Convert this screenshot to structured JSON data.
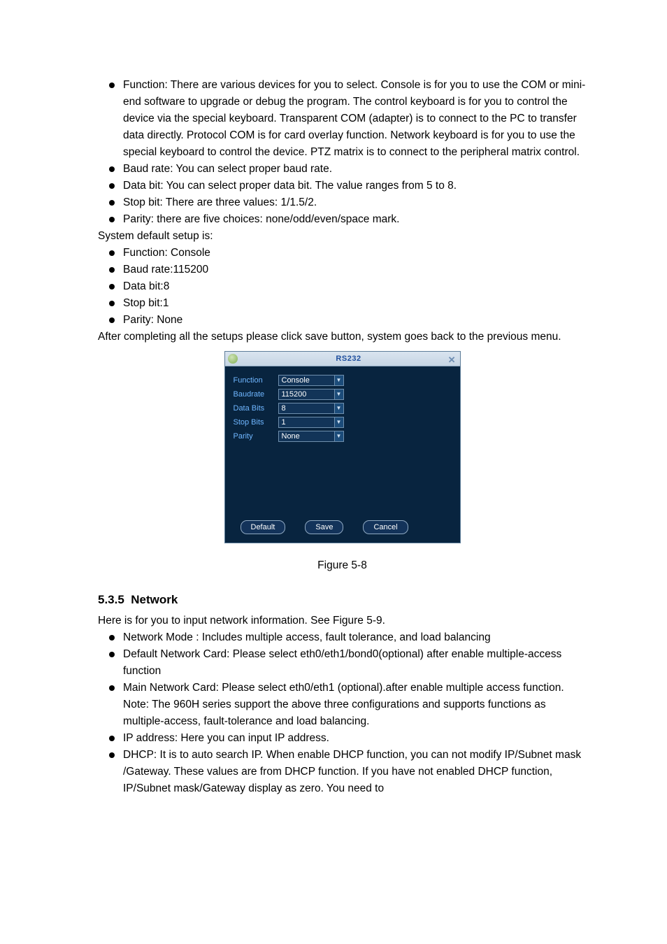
{
  "list1": {
    "function": "Function: There are various devices for you to select. Console is for you to use the COM or mini-end software to upgrade or debug the program. The control keyboard is for you to control the device via the special keyboard. Transparent COM (adapter) is to connect to the PC to transfer data directly. Protocol COM is for card overlay function. Network keyboard is for you to use the special keyboard to control the device. PTZ matrix is to connect to the peripheral matrix control.",
    "baud": "Baud rate: You can select proper baud rate.",
    "databit": "Data bit: You can select proper data bit. The value ranges from 5 to 8.",
    "stopbit": "Stop bit: There are three values: 1/1.5/2.",
    "parity": "Parity: there are five choices: none/odd/even/space mark."
  },
  "defaults_intro": "System default setup is:",
  "defaults": {
    "function": "Function: Console",
    "baud": "Baud rate:115200",
    "databit": "Data bit:8",
    "stopbit": "Stop bit:1",
    "parity": "Parity: None"
  },
  "after": "After completing all the setups please click save button, system goes back to the previous menu.",
  "dialog": {
    "title": "RS232",
    "close": "✕",
    "rows": {
      "function": {
        "label": "Function",
        "value": "Console"
      },
      "baud": {
        "label": "Baudrate",
        "value": "115200"
      },
      "databits": {
        "label": "Data Bits",
        "value": "8"
      },
      "stopbits": {
        "label": "Stop Bits",
        "value": "1"
      },
      "parity": {
        "label": "Parity",
        "value": "None"
      }
    },
    "buttons": {
      "default": "Default",
      "save": "Save",
      "cancel": "Cancel"
    }
  },
  "figcap": "Figure 5-8",
  "section": {
    "num": "5.3.5",
    "title": "Network",
    "intro": "Here is for you to input network information. See Figure 5-9.",
    "items": {
      "netmode": "Network Mode : Includes multiple access, fault tolerance, and load balancing",
      "defcard": "Default Network Card: Please select eth0/eth1/bond0(optional) after enable multiple-access function",
      "maincard": "Main Network Card: Please select eth0/eth1 (optional).after enable multiple access function.",
      "maincard_note": "Note: The 960H series support the above three configurations and supports functions as multiple-access, fault-tolerance and load balancing.",
      "ip": "IP address: Here you can input IP address.",
      "dhcp": "DHCP: It is to auto search IP. When enable DHCP function, you can not modify IP/Subnet mask /Gateway. These values are from DHCP function. If you have not enabled DHCP function, IP/Subnet mask/Gateway display as zero. You need to"
    }
  }
}
